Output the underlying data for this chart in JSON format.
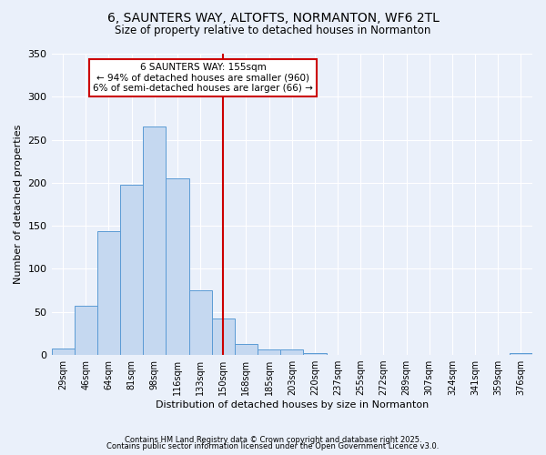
{
  "title": "6, SAUNTERS WAY, ALTOFTS, NORMANTON, WF6 2TL",
  "subtitle": "Size of property relative to detached houses in Normanton",
  "xlabel": "Distribution of detached houses by size in Normanton",
  "ylabel": "Number of detached properties",
  "categories": [
    "29sqm",
    "46sqm",
    "64sqm",
    "81sqm",
    "98sqm",
    "116sqm",
    "133sqm",
    "150sqm",
    "168sqm",
    "185sqm",
    "203sqm",
    "220sqm",
    "237sqm",
    "255sqm",
    "272sqm",
    "289sqm",
    "307sqm",
    "324sqm",
    "341sqm",
    "359sqm",
    "376sqm"
  ],
  "values": [
    8,
    57,
    144,
    198,
    265,
    205,
    75,
    42,
    13,
    6,
    6,
    2,
    0,
    0,
    0,
    0,
    0,
    0,
    0,
    0,
    2
  ],
  "bar_color": "#c5d8f0",
  "bar_edge_color": "#5b9bd5",
  "annotation_line1": "6 SAUNTERS WAY: 155sqm",
  "annotation_line2": "← 94% of detached houses are smaller (960)",
  "annotation_line3": "6% of semi-detached houses are larger (66) →",
  "annotation_box_color": "#ffffff",
  "annotation_box_edge_color": "#cc0000",
  "vline_color": "#cc0000",
  "vline_x_index": 7,
  "ylim": [
    0,
    350
  ],
  "yticks": [
    0,
    50,
    100,
    150,
    200,
    250,
    300,
    350
  ],
  "background_color": "#eaf0fa",
  "grid_color": "#ffffff",
  "footer_line1": "Contains HM Land Registry data © Crown copyright and database right 2025.",
  "footer_line2": "Contains public sector information licensed under the Open Government Licence v3.0."
}
